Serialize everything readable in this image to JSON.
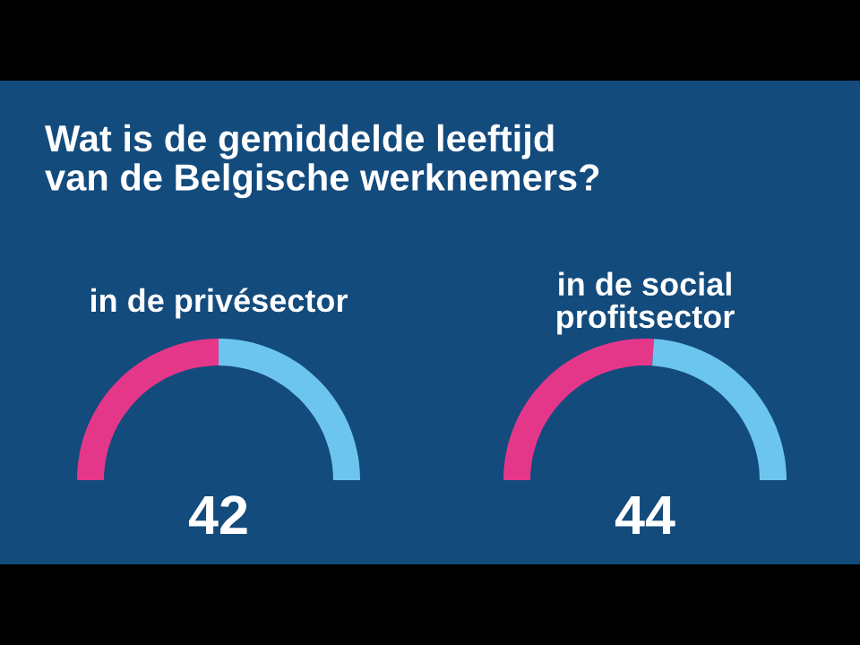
{
  "chart_data": [
    {
      "type": "other",
      "title": "Wat is de gemiddelde leeftijd\nvan de Belgische werknemers?"
    },
    {
      "type": "donut",
      "title": "in de privésector",
      "categories": [
        null,
        null
      ],
      "values": [
        50,
        50
      ],
      "colors": [
        "#e5378a",
        "#6cc5ee"
      ],
      "annotations": [
        "42"
      ]
    },
    {
      "type": "donut",
      "title": "in de social\nprofitsector",
      "categories": [
        null,
        null
      ],
      "values": [
        52,
        48
      ],
      "colors": [
        "#e5378a",
        "#6cc5ee"
      ],
      "annotations": [
        "44"
      ]
    }
  ]
}
